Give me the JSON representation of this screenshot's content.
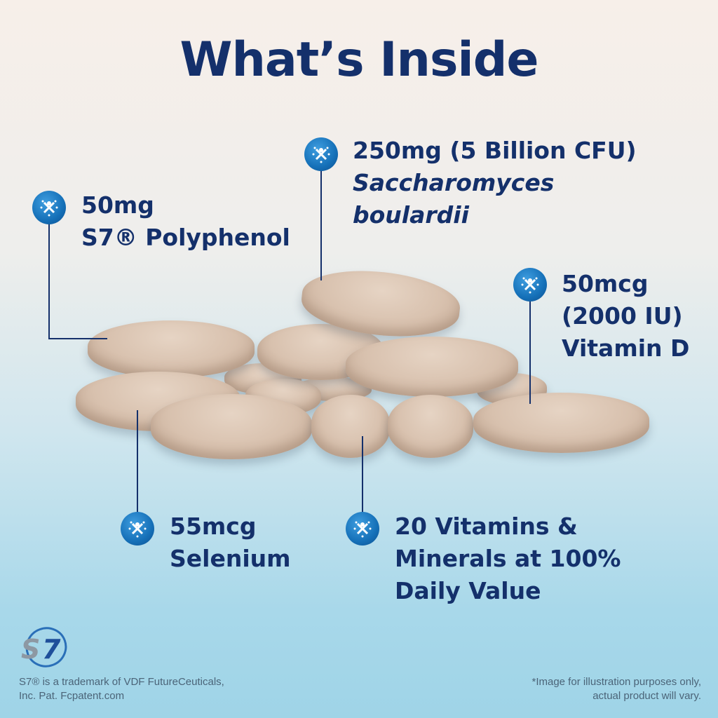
{
  "title": "What’s Inside",
  "callouts": [
    {
      "line1": "50mg",
      "line2": "S7® Polyphenol",
      "icon": "molecule-icon"
    },
    {
      "line1": "250mg (5 Billion CFU)",
      "line2": "Saccharomyces",
      "line3": "boulardii",
      "icon": "molecule-icon"
    },
    {
      "line1": "50mcg",
      "line2": "(2000 IU)",
      "line3": "Vitamin D",
      "icon": "molecule-icon"
    },
    {
      "line1": "55mcg",
      "line2": "Selenium",
      "icon": "molecule-icon"
    },
    {
      "line1": "20 Vitamins &",
      "line2": "Minerals at 100%",
      "line3": "Daily Value",
      "icon": "molecule-icon"
    }
  ],
  "logo": {
    "text": "S7"
  },
  "footer": {
    "left1": "S7® is a trademark of VDF FutureCeuticals,",
    "left2": "Inc. Pat. Fcpatent.com",
    "right1": "*Image for illustration purposes only,",
    "right2": "actual product will vary."
  },
  "colors": {
    "title": "#14306b",
    "icon": "#1570b8",
    "pill": "#d8c1ae"
  }
}
